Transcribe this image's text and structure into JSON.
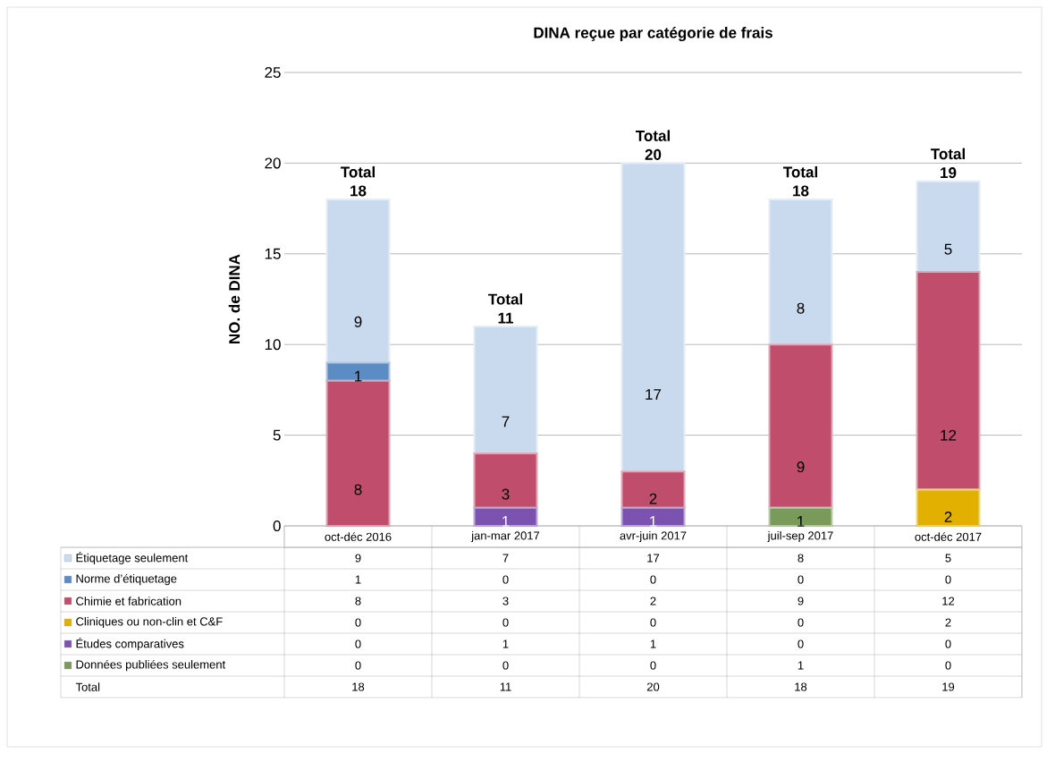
{
  "chart_data": {
    "type": "bar",
    "stacked": true,
    "title": "DINA reçue par catégorie de frais",
    "ylabel": "NO. de DINA",
    "categories": [
      "oct-déc 2016",
      "jan-mar 2017",
      "avr-juin 2017",
      "juil-sep 2017",
      "oct-déc 2017"
    ],
    "series": [
      {
        "name": "Données publiées seulement",
        "color": "#7a9a5a",
        "values": [
          0,
          0,
          0,
          1,
          0
        ],
        "value_labels": [
          "0",
          "0",
          "0",
          "1",
          "0"
        ]
      },
      {
        "name": "Études comparatives",
        "color": "#7b52b0",
        "values": [
          0,
          1,
          1,
          0,
          0
        ],
        "value_labels": [
          "0",
          "1",
          "1",
          "0",
          "0"
        ]
      },
      {
        "name": "Cliniques ou non-clin et C&F",
        "color": "#e2b000",
        "values": [
          0,
          0,
          0,
          0,
          2
        ],
        "value_labels": [
          "0",
          "0",
          "0",
          "0",
          "2"
        ]
      },
      {
        "name": "Chimie et fabrication",
        "color": "#bf4d6b",
        "values": [
          8,
          3,
          2,
          9,
          12
        ],
        "value_labels": [
          "8",
          "3",
          "2",
          "9",
          "12"
        ]
      },
      {
        "name": "Norme d’étiquetage",
        "color": "#5b8cc4",
        "values": [
          1,
          0,
          0,
          0,
          0
        ],
        "value_labels": [
          "1",
          "0",
          "0",
          "0",
          "0"
        ]
      },
      {
        "name": "Étiquetage seulement",
        "color": "#c9d9ee",
        "values": [
          9,
          7,
          17,
          8,
          5
        ],
        "value_labels": [
          "9",
          "7",
          "17",
          "8",
          "5"
        ]
      }
    ],
    "ylim": [
      0,
      25
    ],
    "yticks": [
      0,
      5,
      10,
      15,
      20,
      25
    ],
    "grid": "y",
    "legend": "bottom",
    "totals": [
      "18",
      "11",
      "20",
      "18",
      "19"
    ],
    "annotations": [
      "Total"
    ]
  }
}
